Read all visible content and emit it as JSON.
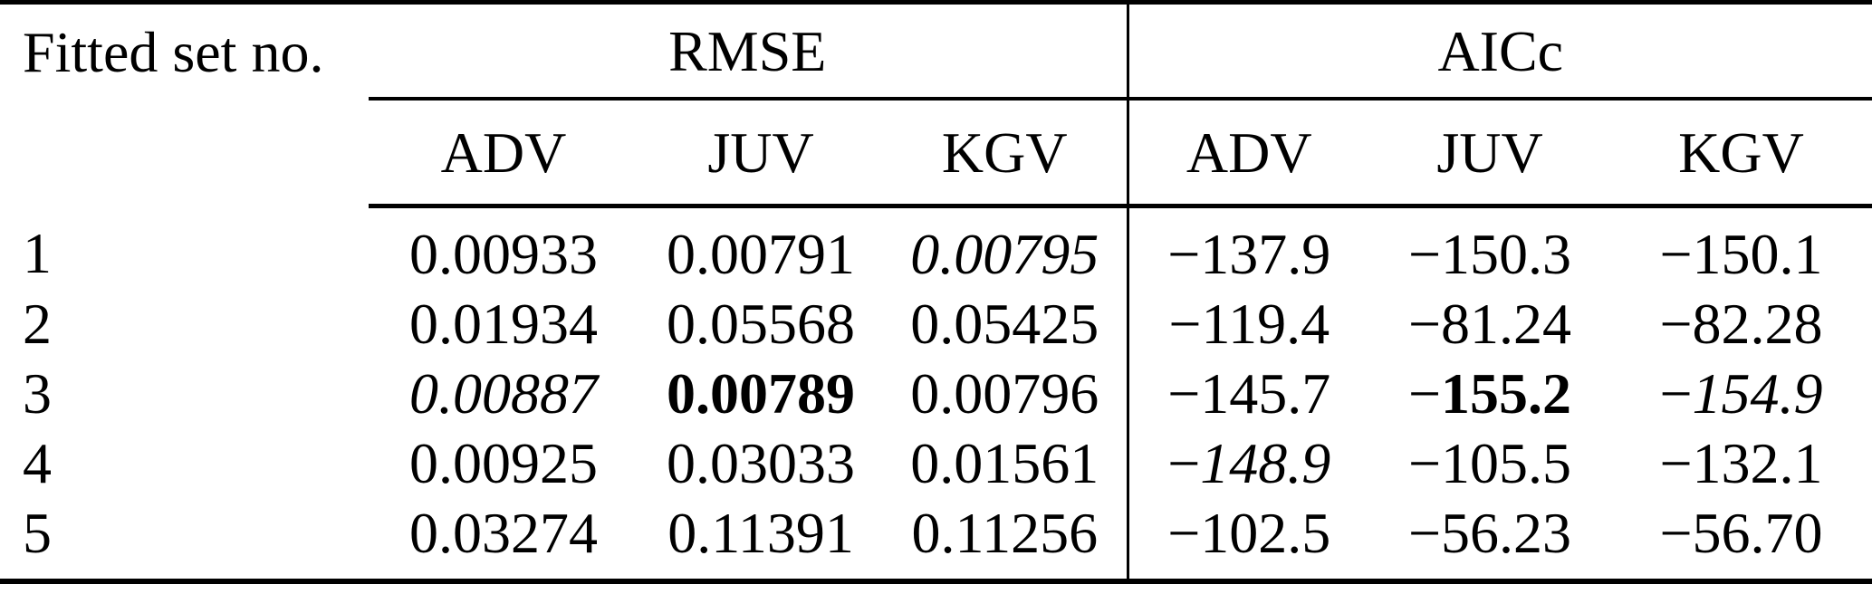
{
  "table": {
    "corner_label": "Fitted set no.",
    "groups": [
      {
        "label": "RMSE",
        "columns": [
          "ADV",
          "JUV",
          "KGV"
        ]
      },
      {
        "label": "AICc",
        "columns": [
          "ADV",
          "JUV",
          "KGV"
        ]
      }
    ],
    "rows": [
      {
        "set": "1",
        "rmse": [
          {
            "v": "0.00933"
          },
          {
            "v": "0.00791"
          },
          {
            "v": "0.00795",
            "s": "italic"
          }
        ],
        "aicc": [
          {
            "v": "−137.9"
          },
          {
            "v": "−150.3"
          },
          {
            "v": "−150.1"
          }
        ]
      },
      {
        "set": "2",
        "rmse": [
          {
            "v": "0.01934"
          },
          {
            "v": "0.05568"
          },
          {
            "v": "0.05425"
          }
        ],
        "aicc": [
          {
            "v": "−119.4"
          },
          {
            "v": "−81.24"
          },
          {
            "v": "−82.28"
          }
        ]
      },
      {
        "set": "3",
        "rmse": [
          {
            "v": "0.00887",
            "s": "italic"
          },
          {
            "v": "0.00789",
            "s": "bold"
          },
          {
            "v": "0.00796"
          }
        ],
        "aicc": [
          {
            "v": "−145.7"
          },
          {
            "v": "−155.2",
            "s": "bold"
          },
          {
            "v": "−154.9",
            "s": "italic"
          }
        ]
      },
      {
        "set": "4",
        "rmse": [
          {
            "v": "0.00925"
          },
          {
            "v": "0.03033"
          },
          {
            "v": "0.01561"
          }
        ],
        "aicc": [
          {
            "v": "−148.9",
            "s": "italic"
          },
          {
            "v": "−105.5"
          },
          {
            "v": "−132.1"
          }
        ]
      },
      {
        "set": "5",
        "rmse": [
          {
            "v": "0.03274"
          },
          {
            "v": "0.11391"
          },
          {
            "v": "0.11256"
          }
        ],
        "aicc": [
          {
            "v": "−102.5"
          },
          {
            "v": "−56.23"
          },
          {
            "v": "−56.70"
          }
        ]
      }
    ],
    "colors": {
      "text": "#000000",
      "background": "#ffffff",
      "rule": "#000000"
    }
  }
}
